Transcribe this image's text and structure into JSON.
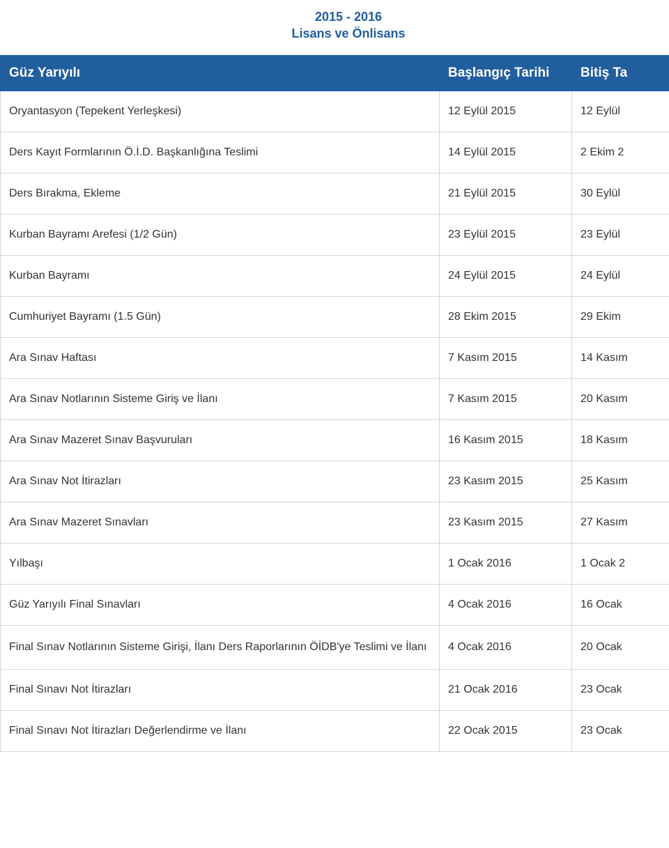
{
  "title": {
    "line1": "2015 - 2016",
    "line2": "Lisans ve Önlisans"
  },
  "headers": {
    "col1": "Güz Yarıyılı",
    "col2": "Başlangıç Tarihi",
    "col3": "Bitiş Ta"
  },
  "rows": [
    {
      "c1": "Oryantasyon (Tepekent Yerleşkesi)",
      "c2": "12 Eylül 2015",
      "c3": "12 Eylül"
    },
    {
      "c1": "Ders Kayıt Formlarının Ö.İ.D. Başkanlığına Teslimi",
      "c2": "14 Eylül 2015",
      "c3": "2 Ekim 2"
    },
    {
      "c1": "Ders Bırakma, Ekleme",
      "c2": "21 Eylül 2015",
      "c3": "30 Eylül"
    },
    {
      "c1": "Kurban Bayramı Arefesi (1/2 Gün)",
      "c2": "23 Eylül 2015",
      "c3": "23 Eylül"
    },
    {
      "c1": "Kurban Bayramı",
      "c2": "24 Eylül 2015",
      "c3": "24 Eylül"
    },
    {
      "c1": "Cumhuriyet Bayramı (1.5 Gün)",
      "c2": "28 Ekim 2015",
      "c3": "29 Ekim"
    },
    {
      "c1": "Ara Sınav Haftası",
      "c2": "7 Kasım 2015",
      "c3": "14 Kasım"
    },
    {
      "c1": "Ara Sınav Notlarının Sisteme Giriş ve İlanı",
      "c2": "7 Kasım 2015",
      "c3": "20 Kasım"
    },
    {
      "c1": "Ara Sınav Mazeret Sınav Başvuruları",
      "c2": "16 Kasım 2015",
      "c3": "18 Kasım"
    },
    {
      "c1": "Ara Sınav Not İtirazları",
      "c2": "23 Kasım 2015",
      "c3": "25 Kasım"
    },
    {
      "c1": "Ara Sınav Mazeret Sınavları",
      "c2": "23 Kasım 2015",
      "c3": "27 Kasım"
    },
    {
      "c1": "Yılbaşı",
      "c2": "1 Ocak 2016",
      "c3": "1 Ocak 2"
    },
    {
      "c1": "Güz Yarıyılı Final Sınavları",
      "c2": "4 Ocak 2016",
      "c3": "16 Ocak"
    },
    {
      "c1": "Final Sınav Notlarının Sisteme Girişi, İlanı Ders Raporlarının ÖİDB'ye Teslimi ve İlanı",
      "c2": "4 Ocak 2016",
      "c3": "20 Ocak",
      "wrap": true
    },
    {
      "c1": "Final Sınavı Not İtirazları",
      "c2": "21 Ocak 2016",
      "c3": "23 Ocak"
    },
    {
      "c1": "Final Sınavı Not İtirazları Değerlendirme ve İlanı",
      "c2": "22 Ocak 2015",
      "c3": "23 Ocak"
    }
  ]
}
